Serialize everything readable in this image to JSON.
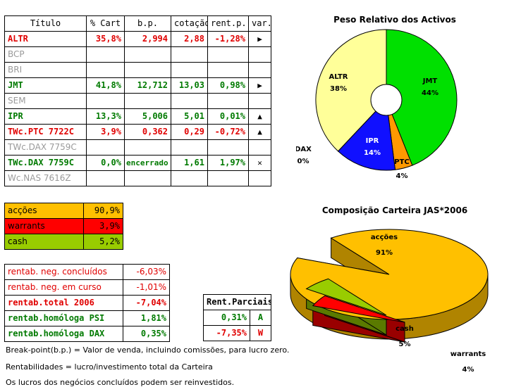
{
  "portfolio_table": {
    "headers": [
      "Título",
      "% Cart",
      "b.p.",
      "cotação",
      "rent.p.",
      "var."
    ],
    "rows": [
      {
        "titulo": "ALTR",
        "cart": "35,8%",
        "bp": "2,994",
        "cotacao": "2,88",
        "rent": "-1,28%",
        "var": "▶",
        "style": "red"
      },
      {
        "titulo": "BCP",
        "cart": "",
        "bp": "",
        "cotacao": "",
        "rent": "",
        "var": "",
        "style": "gry"
      },
      {
        "titulo": "BRI",
        "cart": "",
        "bp": "",
        "cotacao": "",
        "rent": "",
        "var": "",
        "style": "gry"
      },
      {
        "titulo": "JMT",
        "cart": "41,8%",
        "bp": "12,712",
        "cotacao": "13,03",
        "rent": "0,98%",
        "var": "▶",
        "style": "grn"
      },
      {
        "titulo": "SEM",
        "cart": "",
        "bp": "",
        "cotacao": "",
        "rent": "",
        "var": "",
        "style": "gry"
      },
      {
        "titulo": "IPR",
        "cart": "13,3%",
        "bp": "5,006",
        "cotacao": "5,01",
        "rent": "0,01%",
        "var": "▲",
        "style": "grn"
      },
      {
        "titulo": "TWc.PTC 7722C",
        "cart": "3,9%",
        "bp": "0,362",
        "cotacao": "0,29",
        "rent": "-0,72%",
        "var": "▲",
        "style": "red"
      },
      {
        "titulo": "TWc.DAX 7759C",
        "cart": "",
        "bp": "",
        "cotacao": "",
        "rent": "",
        "var": "",
        "style": "gry"
      },
      {
        "titulo": "TWc.DAX 7759C",
        "cart": "0,0%",
        "bp": "encerrado",
        "cotacao": "1,61",
        "rent": "1,97%",
        "var": "✕",
        "style": "grn"
      },
      {
        "titulo": "Wc.NAS 7616Z",
        "cart": "",
        "bp": "",
        "cotacao": "",
        "rent": "",
        "var": "",
        "style": "gry"
      }
    ]
  },
  "allocation_table": [
    {
      "label": "acções",
      "value": "90,9%",
      "bg": "#ffc000"
    },
    {
      "label": "warrants",
      "value": "3,9%",
      "bg": "#ff0000"
    },
    {
      "label": "cash",
      "value": "5,2%",
      "bg": "#99cc00"
    }
  ],
  "returns_table": [
    {
      "label": "rentab. neg. concluídos",
      "value": "-6,03%",
      "style": "plain-red"
    },
    {
      "label": "rentab. neg. em curso",
      "value": "-1,01%",
      "style": "plain-red"
    },
    {
      "label": "rentab.total 2006",
      "value": "-7,04%",
      "style": "red"
    },
    {
      "label": "rentab.homóloga PSI",
      "value": "1,81%",
      "style": "grn"
    },
    {
      "label": "rentab.homóloga DAX",
      "value": "0,35%",
      "style": "grn"
    }
  ],
  "partial_returns": {
    "header": "Rent.Parciais",
    "rows": [
      {
        "value": "0,31%",
        "code": "A",
        "style": "grn"
      },
      {
        "value": "-7,35%",
        "code": "W",
        "style": "red"
      }
    ]
  },
  "notes": [
    "Break-point(b.p.) = Valor de venda, incluindo comissões, para lucro zero.",
    "Rentabilidades = lucro/investimento total da Carteira",
    "Os lucros dos negócios concluídos podem ser reinvestidos."
  ],
  "chart_data": [
    {
      "type": "pie",
      "title": "Peso Relativo dos Activos",
      "categories": [
        "JMT",
        "PTC",
        "IPR",
        "DAX",
        "ALTR"
      ],
      "values": [
        44,
        4,
        14,
        0,
        38
      ],
      "labels": [
        "44%",
        "4%",
        "14%",
        "0%",
        "38%"
      ],
      "colors": [
        "#00e000",
        "#ff9900",
        "#1010ff",
        "#cccc00",
        "#ffff99"
      ],
      "donut": true
    },
    {
      "type": "pie",
      "title": "Composição Carteira JAS*2006",
      "categories": [
        "acções",
        "warrants",
        "cash"
      ],
      "values": [
        91,
        4,
        5
      ],
      "labels": [
        "91%",
        "4%",
        "5%"
      ],
      "colors": [
        "#ffc000",
        "#ff0000",
        "#99cc00"
      ],
      "three_d": true
    }
  ]
}
